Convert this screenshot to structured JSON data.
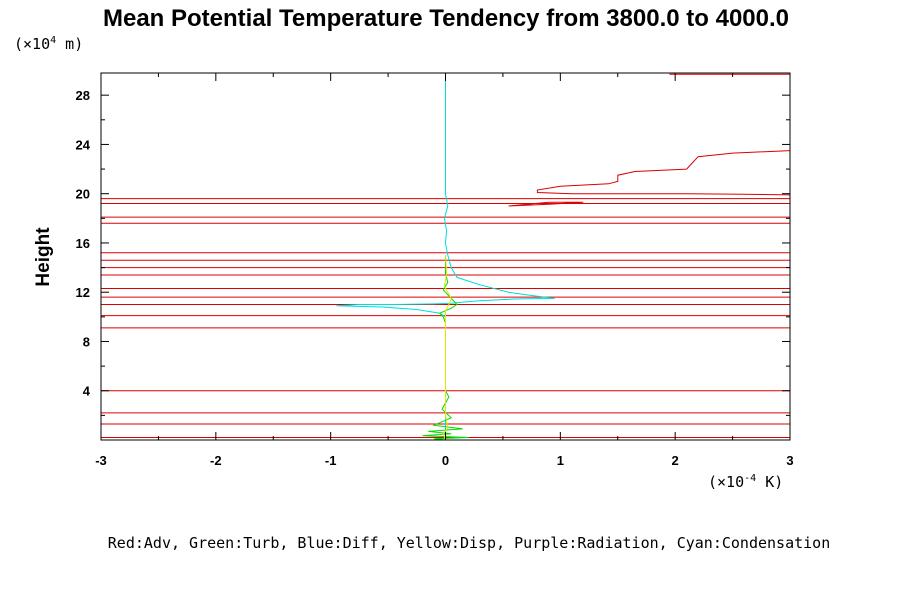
{
  "chart_data": {
    "type": "line",
    "title": "Mean Potential Temperature Tendency from 3800.0 to 4000.0",
    "xlabel": "",
    "ylabel": "Height",
    "x_unit": {
      "prefix": "(×10",
      "exp": "-4",
      "suffix": " K)"
    },
    "y_unit": {
      "prefix": "(×10",
      "exp": "4",
      "suffix": " m)"
    },
    "xlim": [
      -3,
      3
    ],
    "ylim": [
      0,
      29.8
    ],
    "x_major_ticks": [
      -3,
      -2,
      -1,
      0,
      1,
      2,
      3
    ],
    "y_major_ticks": [
      4,
      8,
      12,
      16,
      20,
      24,
      28
    ],
    "x_minor_step": 0.5,
    "y_minor_step": 2,
    "legend_text": "Red:Adv, Green:Turb, Blue:Diff, Yellow:Disp, Purple:Radiation, Cyan:Condensation",
    "colors": {
      "Adv": "#dd0000",
      "Turb": "#00dd00",
      "Diff": "#0000ff",
      "Disp": "#e6e600",
      "Radiation": "#a000a0",
      "Condensation": "#00dddd"
    },
    "adv_hlines": [
      0.2,
      1.3,
      2.2,
      4.0,
      9.1,
      10.1,
      11.0,
      11.6,
      12.3,
      13.4,
      14.0,
      14.6,
      15.2,
      17.6,
      18.1,
      19.2,
      19.6
    ],
    "series": [
      {
        "name": "Adv",
        "x": [
          3.0,
          2.5,
          2.2,
          2.15,
          2.1,
          1.65,
          1.5,
          1.5,
          1.42,
          1.0,
          0.8,
          0.8,
          1.1,
          1.6,
          2.1,
          2.6,
          3.0
        ],
        "y": [
          23.5,
          23.3,
          23.0,
          22.5,
          22.0,
          21.8,
          21.5,
          21.0,
          20.8,
          20.6,
          20.3,
          20.1,
          20.0,
          20.0,
          20.0,
          19.95,
          19.9
        ]
      },
      {
        "name": "Adv",
        "x": [
          0.55,
          0.9,
          1.2,
          0.9,
          0.55
        ],
        "y": [
          19.0,
          19.3,
          19.3,
          19.15,
          19.0
        ]
      },
      {
        "name": "Adv",
        "x": [
          1.95,
          3.0
        ],
        "y": [
          29.7,
          29.7
        ]
      },
      {
        "name": "Condensation",
        "x": [
          0.0,
          0.0,
          0.02,
          -0.01,
          0.01,
          0.0,
          0.02,
          0.05,
          0.1,
          0.3,
          0.55,
          0.7,
          0.95,
          0.6,
          0.3,
          0.15,
          0.05,
          -0.1,
          -0.45,
          -0.75,
          -0.95,
          -0.55,
          -0.25,
          -0.05,
          0.0,
          0.0,
          0.0
        ],
        "y": [
          29.8,
          20.0,
          19.0,
          18.0,
          17.0,
          16.0,
          15.0,
          14.0,
          13.2,
          12.6,
          12.0,
          11.8,
          11.5,
          11.45,
          11.3,
          11.2,
          11.1,
          11.05,
          11.0,
          11.0,
          10.9,
          10.8,
          10.6,
          10.3,
          10.0,
          5.0,
          0.0
        ]
      },
      {
        "name": "Turb",
        "x": [
          0.0,
          0.0,
          0.02,
          -0.02,
          0.04,
          0.1,
          0.05,
          -0.05,
          -0.02,
          0.0,
          0.0,
          0.03,
          -0.03,
          0.05,
          -0.1,
          0.15,
          -0.15,
          0.05,
          -0.2,
          0.2,
          -0.1,
          0.0
        ],
        "y": [
          15.0,
          13.5,
          12.8,
          12.2,
          11.6,
          11.0,
          10.7,
          10.3,
          10.0,
          9.5,
          4.0,
          3.5,
          2.5,
          1.8,
          1.2,
          0.9,
          0.7,
          0.5,
          0.35,
          0.2,
          0.1,
          0.0
        ]
      },
      {
        "name": "Disp",
        "x": [
          0.0,
          0.01,
          -0.01,
          0.02,
          0.05,
          0.03,
          0.0,
          0.0,
          0.02,
          -0.02,
          0.0
        ],
        "y": [
          15.0,
          13.5,
          12.5,
          12.0,
          11.5,
          11.0,
          10.5,
          2.0,
          1.0,
          0.5,
          0.0
        ]
      }
    ]
  }
}
